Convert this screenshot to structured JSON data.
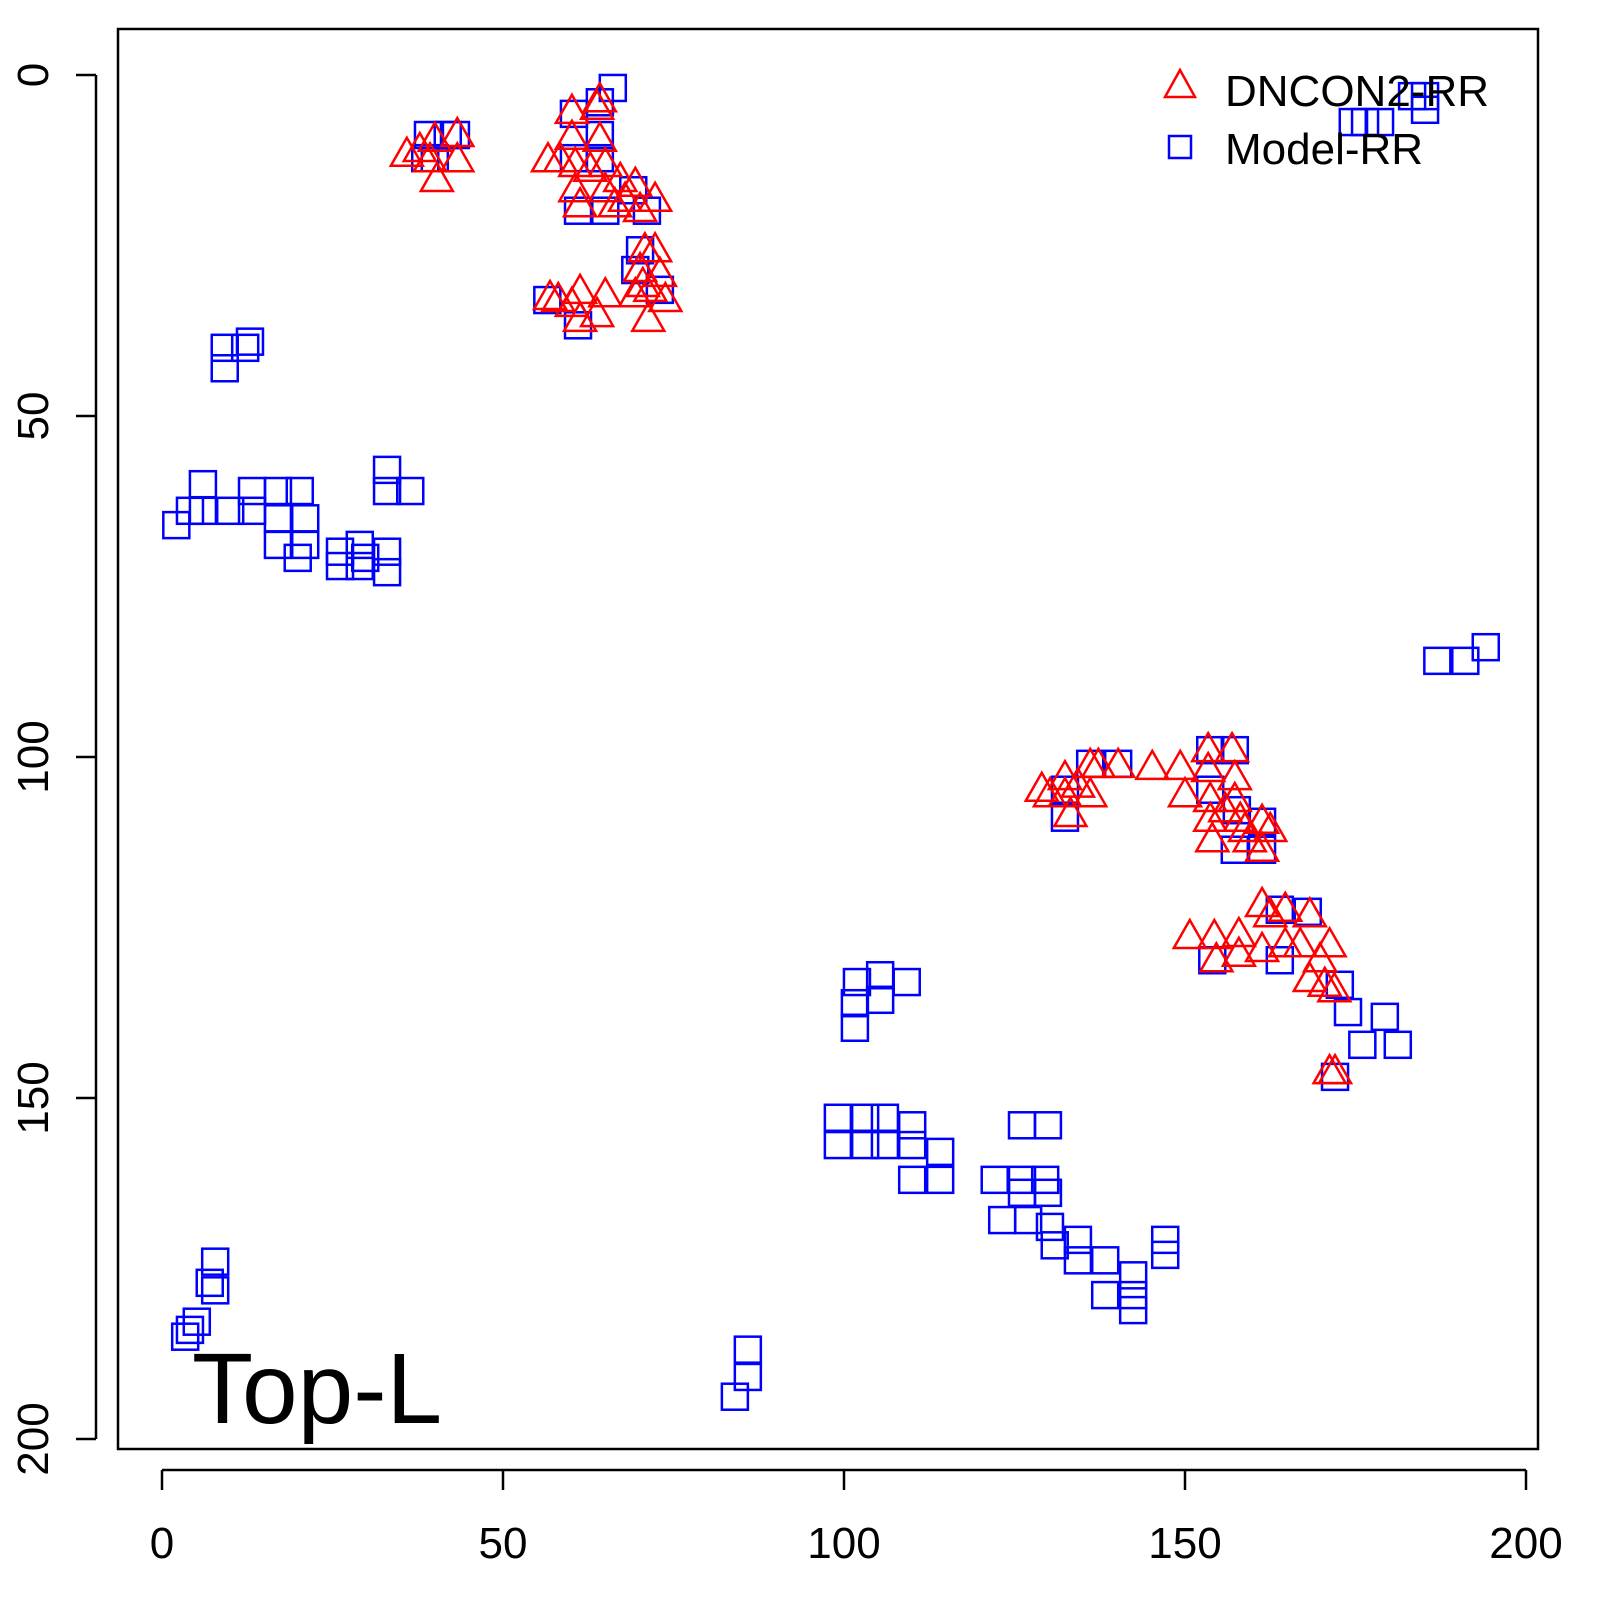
{
  "chart_data": {
    "type": "scatter",
    "title": "",
    "xlabel": "",
    "ylabel": "",
    "xlim": [
      -6.5,
      201.5
    ],
    "ylim": [
      201.5,
      -6.5
    ],
    "y_inverted": true,
    "xticks": [
      0,
      50,
      100,
      150,
      200
    ],
    "yticks": [
      0,
      50,
      100,
      150,
      200
    ],
    "xtick_labels": [
      "0",
      "50",
      "100",
      "150",
      "200"
    ],
    "ytick_labels": [
      "0",
      "50",
      "100",
      "150",
      "200"
    ],
    "grid": false,
    "legend_position": "top-right",
    "annotation": "Top-L",
    "colors": {
      "DNCON2-RR": "#ff0000",
      "Model-RR": "#0000ff"
    },
    "series": [
      {
        "name": "DNCON2-RR",
        "marker": "triangle",
        "points": [
          [
            35.9,
            11.7
          ],
          [
            40.0,
            9.5
          ],
          [
            43.3,
            8.8
          ],
          [
            39.3,
            12.5
          ],
          [
            43.3,
            12.5
          ],
          [
            40.3,
            15.4
          ],
          [
            37.8,
            11.0
          ],
          [
            60.1,
            5.4
          ],
          [
            64.2,
            3.7
          ],
          [
            63.8,
            4.8
          ],
          [
            60.1,
            9.2
          ],
          [
            58.4,
            12.5
          ],
          [
            60.6,
            13.2
          ],
          [
            64.2,
            9.5
          ],
          [
            62.8,
            13.9
          ],
          [
            65.0,
            13.2
          ],
          [
            67.2,
            15.4
          ],
          [
            60.6,
            16.9
          ],
          [
            69.4,
            16.1
          ],
          [
            66.4,
            19.1
          ],
          [
            70.1,
            19.8
          ],
          [
            61.3,
            19.1
          ],
          [
            65.0,
            16.9
          ],
          [
            67.9,
            18.3
          ],
          [
            72.3,
            18.3
          ],
          [
            56.6,
            12.5
          ],
          [
            70.8,
            25.7
          ],
          [
            72.3,
            25.7
          ],
          [
            70.1,
            28.6
          ],
          [
            73.0,
            29.3
          ],
          [
            71.6,
            31.5
          ],
          [
            69.4,
            32.3
          ],
          [
            73.8,
            33.0
          ],
          [
            71.3,
            35.9
          ],
          [
            70.5,
            30.8
          ],
          [
            56.9,
            32.7
          ],
          [
            58.1,
            33.0
          ],
          [
            61.3,
            31.8
          ],
          [
            63.8,
            35.2
          ],
          [
            65.0,
            32.3
          ],
          [
            61.3,
            35.9
          ],
          [
            60.1,
            33.7
          ],
          [
            129.0,
            104.8
          ],
          [
            132.4,
            103.1
          ],
          [
            132.4,
            105.6
          ],
          [
            134.3,
            104.2
          ],
          [
            136.1,
            101.3
          ],
          [
            137.3,
            101.3
          ],
          [
            140.2,
            101.3
          ],
          [
            133.2,
            108.5
          ],
          [
            136.1,
            105.6
          ],
          [
            130.2,
            105.6
          ],
          [
            145.2,
            101.6
          ],
          [
            149.3,
            101.6
          ],
          [
            150.0,
            105.6
          ],
          [
            153.4,
            99.0
          ],
          [
            156.9,
            99.0
          ],
          [
            153.4,
            101.9
          ],
          [
            157.3,
            103.1
          ],
          [
            153.7,
            106.3
          ],
          [
            157.3,
            106.3
          ],
          [
            154.0,
            112.2
          ],
          [
            158.1,
            109.2
          ],
          [
            155.9,
            107.8
          ],
          [
            161.3,
            109.5
          ],
          [
            161.3,
            113.6
          ],
          [
            159.5,
            112.2
          ],
          [
            162.5,
            110.7
          ],
          [
            158.8,
            110.7
          ],
          [
            153.7,
            109.2
          ],
          [
            150.7,
            126.4
          ],
          [
            154.3,
            126.4
          ],
          [
            154.6,
            129.8
          ],
          [
            157.9,
            126.1
          ],
          [
            157.9,
            129.0
          ],
          [
            161.3,
            121.7
          ],
          [
            162.5,
            123.2
          ],
          [
            164.7,
            122.4
          ],
          [
            161.3,
            128.3
          ],
          [
            164.7,
            127.6
          ],
          [
            166.9,
            127.6
          ],
          [
            168.3,
            123.2
          ],
          [
            168.3,
            132.7
          ],
          [
            169.8,
            129.8
          ],
          [
            171.2,
            127.6
          ],
          [
            171.9,
            134.2
          ],
          [
            170.5,
            133.4
          ],
          [
            171.2,
            146.2
          ],
          [
            172.0,
            146.2
          ]
        ]
      },
      {
        "name": "Model-RR",
        "marker": "square",
        "points": [
          [
            66.1,
            1.9
          ],
          [
            64.2,
            4.0
          ],
          [
            60.4,
            5.7
          ],
          [
            39.0,
            8.8
          ],
          [
            41.9,
            8.8
          ],
          [
            43.1,
            8.8
          ],
          [
            38.6,
            12.2
          ],
          [
            40.0,
            12.2
          ],
          [
            64.2,
            8.8
          ],
          [
            60.4,
            12.2
          ],
          [
            64.2,
            12.2
          ],
          [
            69.1,
            16.9
          ],
          [
            61.0,
            19.9
          ],
          [
            65.0,
            19.9
          ],
          [
            71.1,
            19.9
          ],
          [
            70.1,
            25.7
          ],
          [
            69.4,
            28.6
          ],
          [
            73.0,
            31.5
          ],
          [
            56.5,
            33.0
          ],
          [
            61.0,
            36.7
          ],
          [
            9.2,
            40.0
          ],
          [
            12.9,
            39.1
          ],
          [
            12.2,
            40.0
          ],
          [
            9.2,
            43.0
          ],
          [
            6.0,
            60.0
          ],
          [
            2.1,
            66.0
          ],
          [
            4.1,
            63.9
          ],
          [
            6.0,
            63.9
          ],
          [
            10.0,
            63.9
          ],
          [
            13.2,
            61.0
          ],
          [
            13.2,
            63.9
          ],
          [
            17.0,
            61.0
          ],
          [
            20.2,
            61.0
          ],
          [
            17.0,
            65.0
          ],
          [
            21.0,
            65.0
          ],
          [
            17.0,
            68.9
          ],
          [
            21.0,
            68.9
          ],
          [
            19.9,
            70.8
          ],
          [
            26.1,
            69.9
          ],
          [
            26.1,
            72.0
          ],
          [
            29.0,
            68.9
          ],
          [
            29.0,
            72.0
          ],
          [
            33.0,
            57.9
          ],
          [
            33.0,
            61.0
          ],
          [
            36.4,
            61.0
          ],
          [
            33.0,
            69.9
          ],
          [
            33.0,
            72.9
          ],
          [
            29.8,
            70.8
          ],
          [
            174.6,
            6.9
          ],
          [
            178.6,
            6.9
          ],
          [
            176.4,
            6.9
          ],
          [
            183.3,
            3.1
          ],
          [
            185.2,
            3.1
          ],
          [
            185.2,
            5.1
          ],
          [
            187.0,
            85.9
          ],
          [
            191.1,
            85.9
          ],
          [
            194.1,
            83.9
          ],
          [
            132.4,
            104.8
          ],
          [
            136.1,
            101.0
          ],
          [
            140.2,
            101.0
          ],
          [
            132.4,
            108.9
          ],
          [
            153.7,
            99.0
          ],
          [
            157.3,
            99.0
          ],
          [
            153.7,
            104.8
          ],
          [
            157.6,
            107.8
          ],
          [
            161.3,
            109.5
          ],
          [
            161.3,
            113.6
          ],
          [
            157.3,
            113.6
          ],
          [
            163.9,
            122.4
          ],
          [
            168.0,
            122.7
          ],
          [
            154.0,
            129.8
          ],
          [
            163.9,
            129.8
          ],
          [
            172.7,
            133.4
          ],
          [
            173.9,
            137.4
          ],
          [
            179.3,
            138.1
          ],
          [
            176.0,
            142.2
          ],
          [
            181.2,
            142.2
          ],
          [
            172.0,
            146.9
          ],
          [
            101.9,
            133.0
          ],
          [
            105.3,
            132.0
          ],
          [
            109.2,
            133.0
          ],
          [
            101.6,
            136.1
          ],
          [
            105.3,
            135.6
          ],
          [
            101.6,
            139.7
          ],
          [
            99.1,
            152.9
          ],
          [
            103.1,
            152.9
          ],
          [
            106.0,
            152.9
          ],
          [
            99.1,
            156.9
          ],
          [
            103.1,
            156.9
          ],
          [
            106.0,
            156.9
          ],
          [
            110.0,
            154.0
          ],
          [
            110.0,
            156.9
          ],
          [
            114.1,
            157.9
          ],
          [
            114.1,
            162.0
          ],
          [
            110.0,
            162.0
          ],
          [
            122.1,
            162.0
          ],
          [
            126.1,
            154.0
          ],
          [
            129.9,
            154.0
          ],
          [
            126.1,
            162.0
          ],
          [
            129.5,
            162.0
          ],
          [
            126.1,
            163.9
          ],
          [
            129.9,
            163.9
          ],
          [
            123.2,
            167.9
          ],
          [
            127.0,
            167.9
          ],
          [
            130.2,
            168.9
          ],
          [
            130.9,
            171.6
          ],
          [
            134.3,
            170.8
          ],
          [
            134.3,
            173.8
          ],
          [
            138.3,
            173.8
          ],
          [
            138.3,
            178.9
          ],
          [
            142.4,
            176.0
          ],
          [
            142.4,
            178.9
          ],
          [
            142.4,
            181.1
          ],
          [
            147.1,
            170.8
          ],
          [
            147.1,
            173.0
          ],
          [
            7.8,
            174.0
          ],
          [
            7.8,
            178.2
          ],
          [
            7.0,
            177.1
          ],
          [
            4.1,
            184.0
          ],
          [
            3.4,
            185.0
          ],
          [
            5.1,
            182.8
          ],
          [
            85.9,
            186.9
          ],
          [
            85.9,
            190.9
          ],
          [
            84.0,
            193.8
          ]
        ]
      }
    ]
  }
}
